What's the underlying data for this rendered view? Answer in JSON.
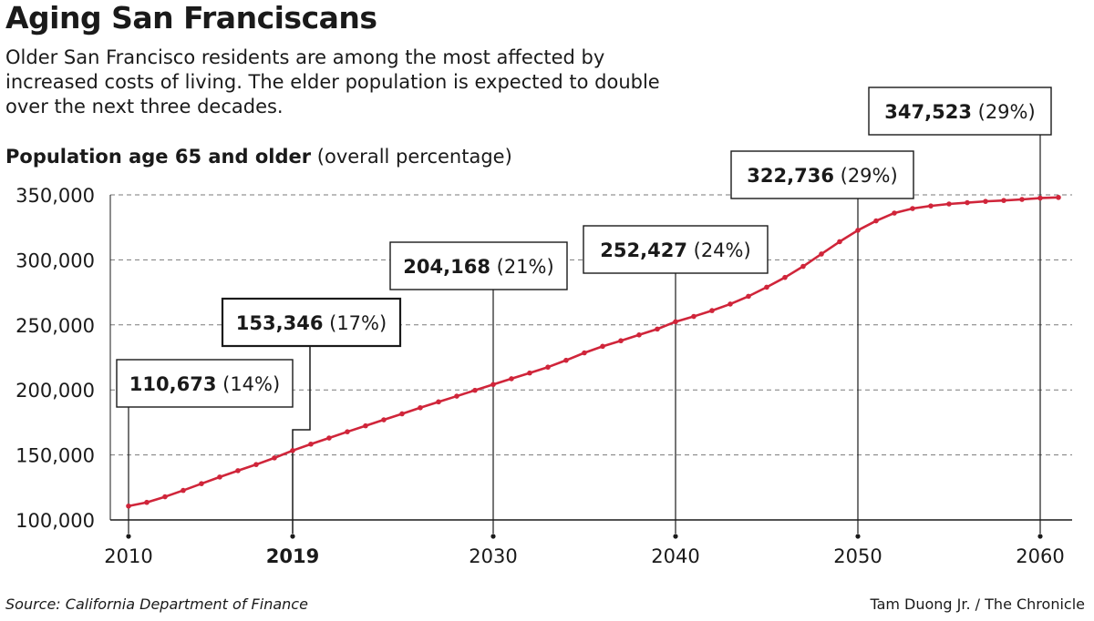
{
  "header": {
    "title": "Aging San Franciscans",
    "subtitle": "Older San Francisco residents are among the most affected by increased costs of living. The elder population is expected to double over the next three decades."
  },
  "chart_heading": {
    "bold": "Population age 65 and older",
    "normal": "(overall percentage)"
  },
  "footer": {
    "source": "Source: California Department of Finance",
    "credit": "Tam Duong Jr. / The Chronicle"
  },
  "colors": {
    "line": "#d0253a",
    "grid": "#7a7a7a",
    "axis": "#1a1a1a"
  },
  "chart_data": {
    "type": "line",
    "series": [
      {
        "x": [
          2010,
          2011,
          2012,
          2013,
          2014,
          2015,
          2016,
          2017,
          2018,
          2019,
          2020,
          2021,
          2022,
          2023,
          2024,
          2025,
          2026,
          2027,
          2028,
          2029,
          2030,
          2031,
          2032,
          2033,
          2034,
          2035,
          2036,
          2037,
          2038,
          2039,
          2040,
          2041,
          2042,
          2043,
          2044,
          2045,
          2046,
          2047,
          2048,
          2049,
          2050,
          2051,
          2052,
          2053,
          2054,
          2055,
          2056,
          2057,
          2058,
          2059,
          2060,
          2061
        ],
        "values": [
          110673,
          113500,
          117800,
          122700,
          127900,
          133000,
          137900,
          142600,
          147700,
          153346,
          158300,
          163000,
          167800,
          172400,
          177000,
          181600,
          186300,
          190800,
          195200,
          199700,
          204168,
          208600,
          213000,
          217500,
          222800,
          228500,
          233500,
          237800,
          242300,
          246800,
          252427,
          256500,
          261000,
          266000,
          272000,
          279000,
          286500,
          295000,
          304500,
          314000,
          322736,
          330000,
          336000,
          339500,
          341500,
          343000,
          344000,
          345000,
          345700,
          346500,
          347523,
          348000
        ]
      }
    ],
    "xlim": [
      2010,
      2061
    ],
    "ylim": [
      100000,
      350000
    ],
    "y_ticks": [
      100000,
      150000,
      200000,
      250000,
      300000,
      350000
    ],
    "y_tick_labels": [
      "100,000",
      "150,000",
      "200,000",
      "250,000",
      "300,000",
      "350,000"
    ],
    "x_ticks": [
      2010,
      2019,
      2030,
      2040,
      2050,
      2060
    ],
    "x_tick_labels": [
      "2010",
      "2019",
      "2030",
      "2040",
      "2050",
      "2060"
    ],
    "x_tick_bold": [
      false,
      true,
      false,
      false,
      false,
      false
    ],
    "grid": "horizontal-dashed",
    "callouts": [
      {
        "year": 2010,
        "value_label": "110,673",
        "pct_label": "(14%)"
      },
      {
        "year": 2019,
        "value_label": "153,346",
        "pct_label": "(17%)"
      },
      {
        "year": 2030,
        "value_label": "204,168",
        "pct_label": "(21%)"
      },
      {
        "year": 2040,
        "value_label": "252,427",
        "pct_label": "(24%)"
      },
      {
        "year": 2050,
        "value_label": "322,736",
        "pct_label": "(29%)"
      },
      {
        "year": 2060,
        "value_label": "347,523",
        "pct_label": "(29%)"
      }
    ]
  }
}
